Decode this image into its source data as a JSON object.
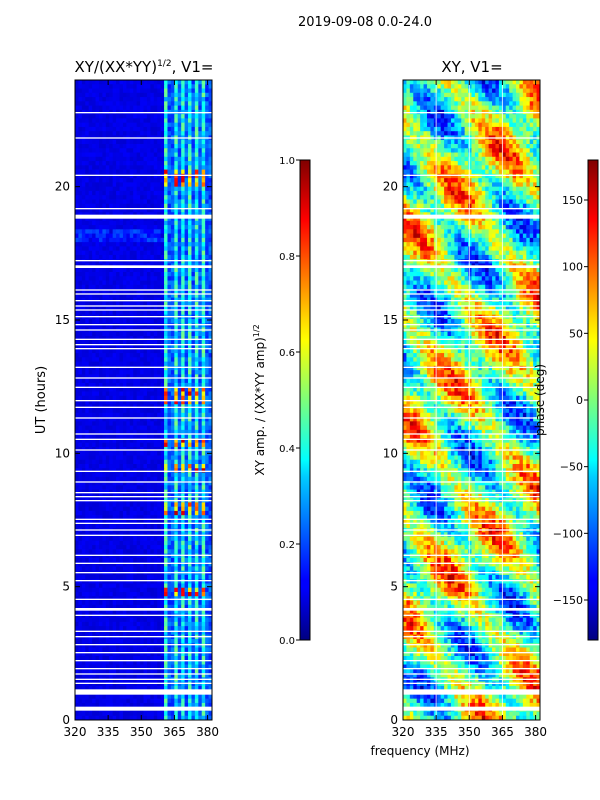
{
  "suptitle": "2019-09-08 0.0-24.0",
  "shared_xlabel": "frequency (MHz)",
  "colors": {
    "gap": "#ffffff",
    "frame": "#000000"
  },
  "chart_data": [
    {
      "type": "heatmap",
      "title": "XY/(XX*YY)",
      "title_superscript": "1/2",
      "title_suffix": ", V1=",
      "ylabel": "UT (hours)",
      "xlim": [
        320,
        382
      ],
      "ylim": [
        0,
        24
      ],
      "xticks": [
        320,
        335,
        350,
        365,
        380
      ],
      "yticks": [
        0,
        5,
        10,
        15,
        20
      ],
      "colormap": "jet",
      "colorbar": {
        "label": "XY amp. / (XX*YY amp)",
        "label_superscript": "1/2",
        "range": [
          0.0,
          1.0
        ],
        "ticks": [
          "0.0",
          "0.2",
          "0.4",
          "0.6",
          "0.8",
          "1.0"
        ]
      },
      "background_level": 0.08,
      "bright_channels_mhz": [
        361.5,
        365.5,
        368.5,
        372,
        375.5,
        378.5
      ],
      "bright_band_start_mhz": 360,
      "strong_hours": [
        4.8,
        7.9,
        9.4,
        10.4,
        12.1,
        12.3,
        20.2,
        20.4
      ],
      "interference_hours": [
        17.9,
        18.4
      ]
    },
    {
      "type": "heatmap",
      "title": "XY, V1=",
      "xlim": [
        320,
        382
      ],
      "ylim": [
        0,
        24
      ],
      "xticks": [
        320,
        335,
        350,
        365,
        380
      ],
      "yticks": [
        0,
        5,
        10,
        15,
        20
      ],
      "colormap": "jet",
      "colorbar": {
        "label": "phase (deg)",
        "range": [
          -180,
          180
        ],
        "ticks": [
          "−150",
          "−100",
          "−50",
          "0",
          "50",
          "100",
          "150"
        ],
        "tick_values": [
          -150,
          -100,
          -50,
          0,
          50,
          100,
          150
        ]
      },
      "gridlines_mhz": [
        335,
        350,
        365
      ]
    }
  ],
  "gap_hours": [
    [
      0.35,
      0.5
    ],
    [
      0.95,
      1.05
    ],
    [
      1.05,
      1.15
    ],
    [
      1.35,
      1.4
    ],
    [
      1.5,
      1.55
    ],
    [
      1.7,
      1.75
    ],
    [
      1.9,
      1.95
    ],
    [
      2.2,
      2.25
    ],
    [
      2.5,
      2.55
    ],
    [
      2.8,
      2.85
    ],
    [
      3.1,
      3.15
    ],
    [
      3.3,
      3.35
    ],
    [
      3.9,
      3.95
    ],
    [
      4.1,
      4.2
    ],
    [
      4.5,
      4.55
    ],
    [
      5.2,
      5.25
    ],
    [
      5.5,
      5.55
    ],
    [
      5.85,
      5.9
    ],
    [
      6.15,
      6.2
    ],
    [
      6.9,
      6.95
    ],
    [
      7.1,
      7.15
    ],
    [
      7.35,
      7.4
    ],
    [
      7.5,
      7.55
    ],
    [
      8.2,
      8.25
    ],
    [
      8.35,
      8.4
    ],
    [
      8.5,
      8.55
    ],
    [
      8.9,
      8.95
    ],
    [
      9.3,
      9.35
    ],
    [
      10.1,
      10.15
    ],
    [
      10.5,
      10.55
    ],
    [
      10.7,
      10.75
    ],
    [
      11.3,
      11.35
    ],
    [
      11.7,
      11.75
    ],
    [
      11.95,
      12.0
    ],
    [
      12.45,
      12.5
    ],
    [
      12.8,
      12.85
    ],
    [
      13.2,
      13.25
    ],
    [
      13.9,
      13.95
    ],
    [
      14.05,
      14.1
    ],
    [
      14.25,
      14.3
    ],
    [
      14.6,
      14.65
    ],
    [
      14.8,
      14.85
    ],
    [
      15.1,
      15.15
    ],
    [
      15.35,
      15.4
    ],
    [
      15.5,
      15.55
    ],
    [
      15.7,
      15.75
    ],
    [
      15.95,
      16.0
    ],
    [
      16.1,
      16.15
    ],
    [
      16.95,
      17.05
    ],
    [
      17.2,
      17.25
    ],
    [
      18.8,
      18.95
    ],
    [
      19.15,
      19.2
    ],
    [
      20.4,
      20.45
    ],
    [
      21.8,
      21.85
    ],
    [
      22.75,
      22.8
    ]
  ]
}
